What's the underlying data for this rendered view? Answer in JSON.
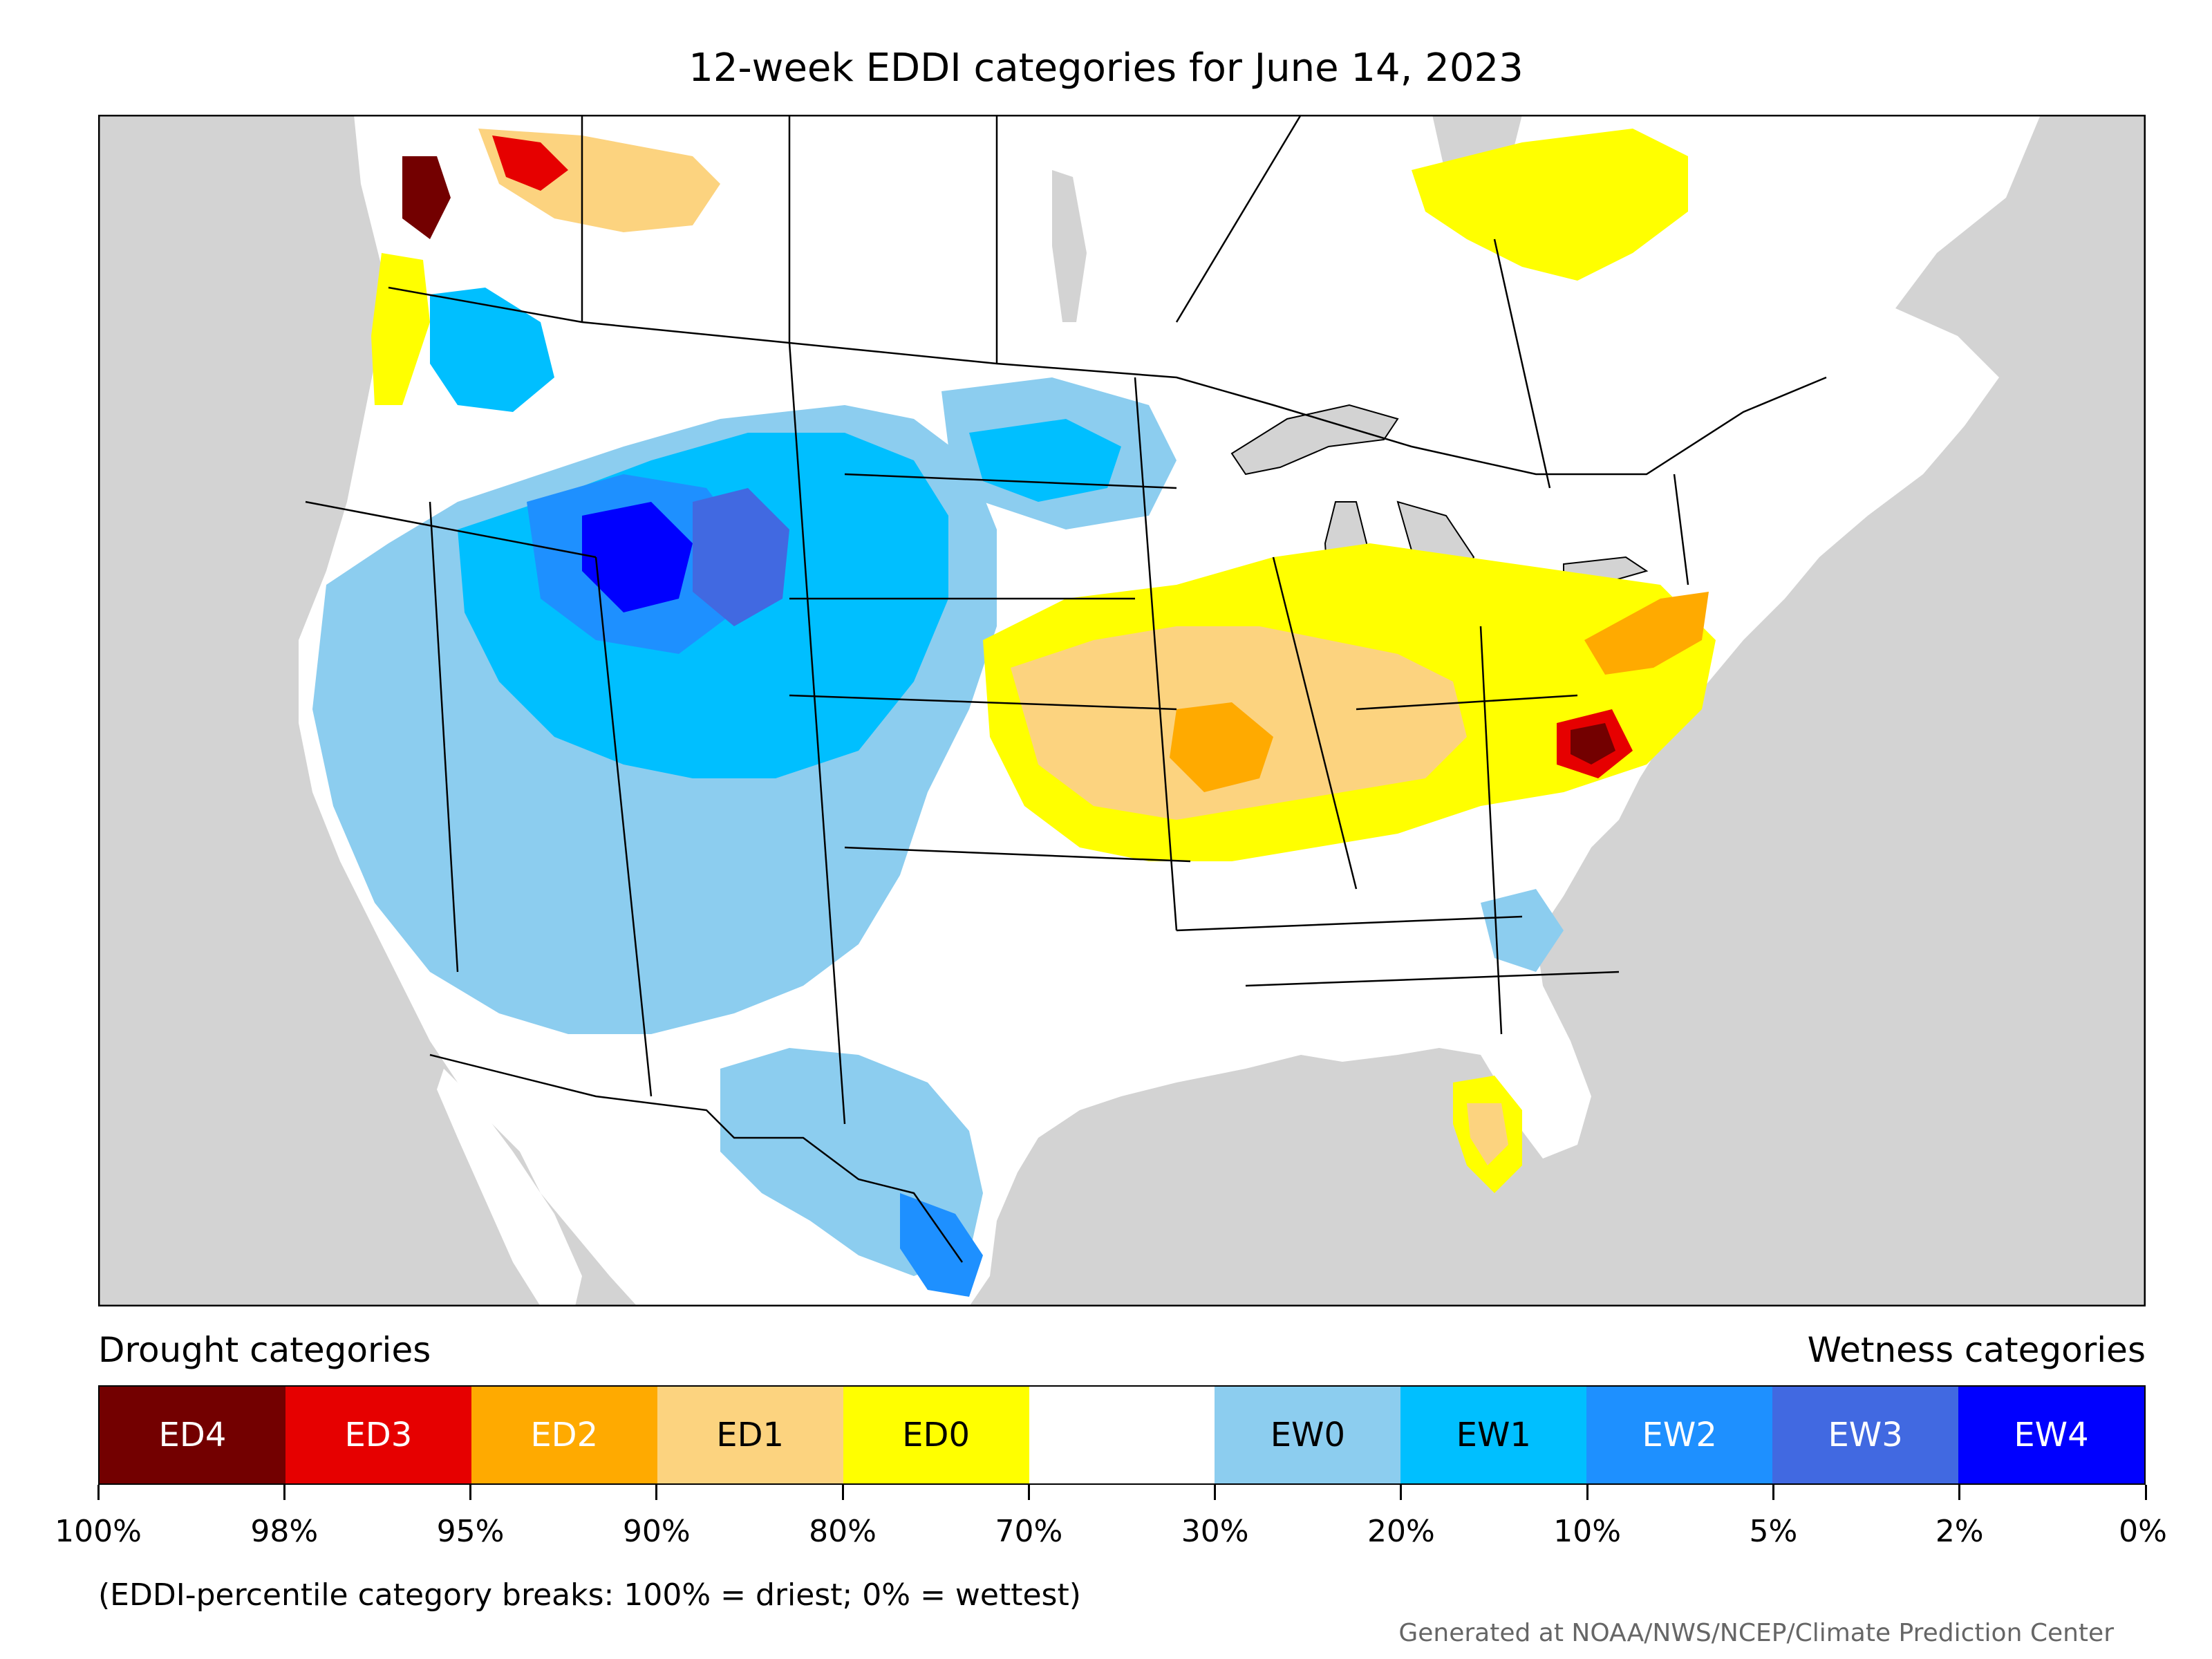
{
  "title": "12-week EDDI categories for June 14, 2023",
  "legend": {
    "drought_header": "Drought categories",
    "wetness_header": "Wetness categories",
    "categories": [
      {
        "label": "ED4",
        "color": "#730000",
        "text_color": "#ffffff"
      },
      {
        "label": "ED3",
        "color": "#e60000",
        "text_color": "#ffffff"
      },
      {
        "label": "ED2",
        "color": "#ffaa00",
        "text_color": "#ffffff"
      },
      {
        "label": "ED1",
        "color": "#fcd37f",
        "text_color": "#000000"
      },
      {
        "label": "ED0",
        "color": "#ffff00",
        "text_color": "#000000"
      },
      {
        "label": "",
        "color": "#ffffff",
        "text_color": "#000000"
      },
      {
        "label": "EW0",
        "color": "#8ccdef",
        "text_color": "#000000"
      },
      {
        "label": "EW1",
        "color": "#00bfff",
        "text_color": "#000000"
      },
      {
        "label": "EW2",
        "color": "#1e90ff",
        "text_color": "#ffffff"
      },
      {
        "label": "EW3",
        "color": "#4169e1",
        "text_color": "#ffffff"
      },
      {
        "label": "EW4",
        "color": "#0000ff",
        "text_color": "#ffffff"
      }
    ],
    "ticks": [
      "100%",
      "98%",
      "95%",
      "90%",
      "80%",
      "70%",
      "30%",
      "20%",
      "10%",
      "5%",
      "2%",
      "0%"
    ]
  },
  "note": "(EDDI-percentile category breaks: 100% = driest; 0% = wettest)",
  "credit": "Generated at NOAA/NWS/NCEP/Climate Prediction Center",
  "map": {
    "ocean_color": "#d3d3d3",
    "land_color": "#ffffff",
    "border_color": "#000000"
  }
}
